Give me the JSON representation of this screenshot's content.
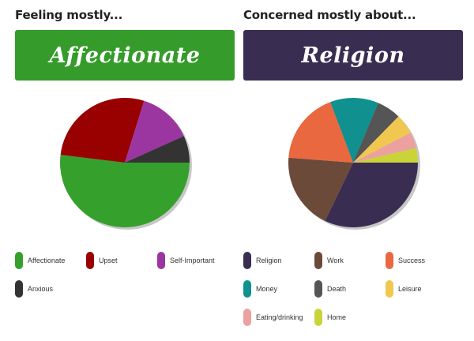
{
  "panels": {
    "left": {
      "heading": "Feeling mostly...",
      "banner": "Affectionate",
      "banner_color": "#359b2b"
    },
    "right": {
      "heading": "Concerned mostly about...",
      "banner": "Religion",
      "banner_color": "#3a2d52"
    }
  },
  "chart_data": [
    {
      "type": "pie",
      "title": "",
      "start_angle_deg": 0,
      "direction": "clockwise",
      "legend_position": "bottom",
      "slices": [
        {
          "label": "Affectionate",
          "value": 54,
          "color": "#36a02c"
        },
        {
          "label": "Upset",
          "value": 29,
          "color": "#990000"
        },
        {
          "label": "Self-Important",
          "value": 14,
          "color": "#9b36a1"
        },
        {
          "label": "Anxious",
          "value": 7,
          "color": "#333333"
        }
      ],
      "legend_order": [
        "Affectionate",
        "Upset",
        "Self-Important",
        "Anxious"
      ]
    },
    {
      "type": "pie",
      "title": "",
      "start_angle_deg": 0,
      "direction": "clockwise",
      "legend_position": "bottom",
      "slices": [
        {
          "label": "Religion",
          "value": 32,
          "color": "#3a2d52"
        },
        {
          "label": "Work",
          "value": 19,
          "color": "#6b4a3a"
        },
        {
          "label": "Success",
          "value": 18,
          "color": "#ea6840"
        },
        {
          "label": "Money",
          "value": 12,
          "color": "#119090"
        },
        {
          "label": "Death",
          "value": 6,
          "color": "#555555"
        },
        {
          "label": "Leisure",
          "value": 5,
          "color": "#f0c850"
        },
        {
          "label": "Eating/drinking",
          "value": 4,
          "color": "#eda0a0"
        },
        {
          "label": "Home",
          "value": 3.6,
          "color": "#cad43a"
        }
      ],
      "legend_order": [
        "Religion",
        "Work",
        "Success",
        "Money",
        "Death",
        "Leisure",
        "Eating/drinking",
        "Home"
      ]
    }
  ]
}
